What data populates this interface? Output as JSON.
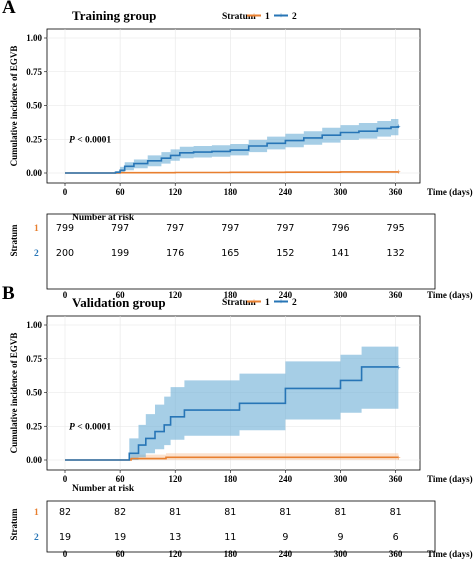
{
  "legend": {
    "title": "Stratum",
    "labels": [
      "1",
      "2"
    ]
  },
  "colors": {
    "stratum1": "#e87f2f",
    "stratum2": "#2775b6",
    "ci2": "#6aaed6",
    "ci1": "#f7c59f"
  },
  "p_value": "P < 0.0001",
  "x_axis_label": "Time (days)",
  "y_axis_label": "Cumulative incidence of EGVB",
  "risk_table": {
    "title": "Number at risk",
    "ylabel": "Stratum"
  },
  "chart_data": [
    {
      "panel": "A",
      "title": "Training group",
      "type": "line",
      "xlabel": "Time (days)",
      "ylabel": "Cumulative incidence of EGVB",
      "xlim": [
        0,
        380
      ],
      "ylim": [
        0,
        1.0
      ],
      "xticks": [
        0,
        60,
        120,
        180,
        240,
        300,
        360
      ],
      "yticks": [
        "0.00",
        "0.25",
        "0.50",
        "0.75",
        "1.00"
      ],
      "series": [
        {
          "name": "1",
          "x": [
            0,
            60,
            120,
            180,
            240,
            300,
            363
          ],
          "y": [
            0,
            0.002,
            0.004,
            0.005,
            0.006,
            0.008,
            0.01
          ],
          "lower": [
            0,
            0,
            0,
            0,
            0.001,
            0.002,
            0.003
          ],
          "upper": [
            0,
            0.006,
            0.008,
            0.01,
            0.012,
            0.015,
            0.018
          ]
        },
        {
          "name": "2",
          "x": [
            0,
            50,
            55,
            60,
            65,
            75,
            90,
            105,
            115,
            125,
            140,
            160,
            180,
            200,
            220,
            240,
            260,
            280,
            300,
            320,
            340,
            355,
            363
          ],
          "y": [
            0,
            0,
            0.005,
            0.02,
            0.05,
            0.07,
            0.09,
            0.11,
            0.13,
            0.15,
            0.155,
            0.16,
            0.17,
            0.2,
            0.22,
            0.24,
            0.26,
            0.28,
            0.3,
            0.31,
            0.33,
            0.34,
            0.35
          ],
          "lower": [
            0,
            0,
            0,
            0,
            0.02,
            0.035,
            0.05,
            0.07,
            0.09,
            0.11,
            0.115,
            0.12,
            0.13,
            0.155,
            0.175,
            0.19,
            0.21,
            0.225,
            0.245,
            0.255,
            0.27,
            0.28,
            0.29
          ],
          "upper": [
            0,
            0,
            0.015,
            0.045,
            0.08,
            0.1,
            0.13,
            0.155,
            0.175,
            0.195,
            0.2,
            0.205,
            0.215,
            0.245,
            0.27,
            0.29,
            0.31,
            0.335,
            0.355,
            0.37,
            0.385,
            0.4,
            0.41
          ]
        }
      ],
      "risk_table": {
        "times": [
          0,
          60,
          120,
          180,
          240,
          300,
          360
        ],
        "rows": [
          {
            "stratum": "1",
            "values": [
              "799",
              "797",
              "797",
              "797",
              "797",
              "796",
              "795"
            ]
          },
          {
            "stratum": "2",
            "values": [
              "200",
              "199",
              "176",
              "165",
              "152",
              "141",
              "132"
            ]
          }
        ]
      }
    },
    {
      "panel": "B",
      "title": "Validation group",
      "type": "line",
      "xlabel": "Time (days)",
      "ylabel": "Cumulative incidence of EGVB",
      "xlim": [
        0,
        380
      ],
      "ylim": [
        0,
        1.0
      ],
      "xticks": [
        0,
        60,
        120,
        180,
        240,
        300,
        360
      ],
      "yticks": [
        "0.00",
        "0.25",
        "0.50",
        "0.75",
        "1.00"
      ],
      "series": [
        {
          "name": "1",
          "x": [
            0,
            70,
            72,
            110,
            363
          ],
          "y": [
            0,
            0,
            0.01,
            0.02,
            0.02
          ],
          "lower": [
            0,
            0,
            0,
            0,
            0
          ],
          "upper": [
            0,
            0,
            0.04,
            0.05,
            0.05
          ]
        },
        {
          "name": "2",
          "x": [
            0,
            68,
            70,
            80,
            88,
            98,
            108,
            115,
            130,
            190,
            240,
            300,
            323,
            363
          ],
          "y": [
            0,
            0,
            0.05,
            0.11,
            0.16,
            0.21,
            0.26,
            0.32,
            0.37,
            0.42,
            0.53,
            0.59,
            0.69,
            0.69
          ],
          "lower": [
            0,
            0,
            0,
            0.02,
            0.05,
            0.08,
            0.11,
            0.15,
            0.18,
            0.22,
            0.3,
            0.35,
            0.38,
            0.38
          ],
          "upper": [
            0,
            0,
            0.16,
            0.26,
            0.34,
            0.41,
            0.47,
            0.54,
            0.59,
            0.64,
            0.73,
            0.78,
            0.84,
            0.84
          ]
        }
      ],
      "risk_table": {
        "times": [
          0,
          60,
          120,
          180,
          240,
          300,
          360
        ],
        "rows": [
          {
            "stratum": "1",
            "values": [
              "82",
              "82",
              "81",
              "81",
              "81",
              "81",
              "81"
            ]
          },
          {
            "stratum": "2",
            "values": [
              "19",
              "19",
              "13",
              "11",
              "9",
              "9",
              "6"
            ]
          }
        ]
      }
    }
  ]
}
